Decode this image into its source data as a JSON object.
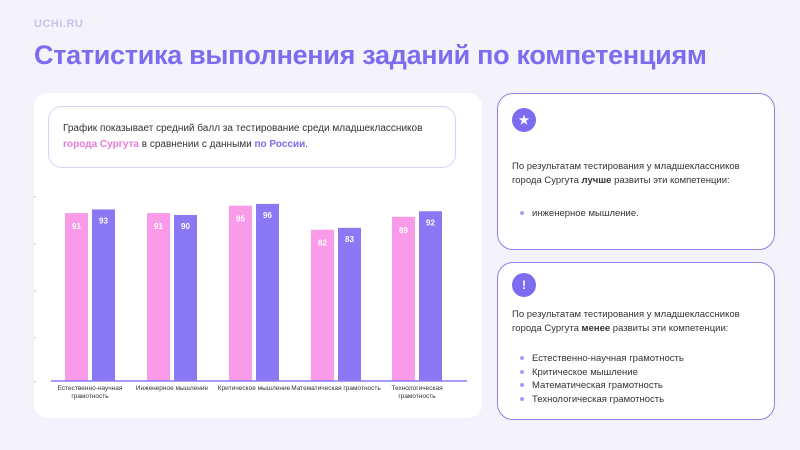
{
  "logo": "UCHi.RU",
  "title": "Статистика выполнения заданий по компетенциям",
  "description": {
    "text1": "График показывает средний балл за тестирование среди младшеклассников",
    "city": "города Сургута",
    "text2": " в сравнении с данными ",
    "country": "по России",
    "end": "."
  },
  "chart_data": {
    "type": "bar",
    "categories": [
      "Естественно-научная грамотность",
      "Инженерное мышление",
      "Критическое мышление",
      "Математическая грамотность",
      "Технологическая грамотность"
    ],
    "series": [
      {
        "values": [
          91,
          91,
          95,
          82,
          89
        ],
        "color": "#f99be8"
      },
      {
        "values": [
          93,
          90,
          96,
          83,
          92
        ],
        "color": "#8a78f5"
      }
    ],
    "ylim": [
      0,
      100
    ],
    "grid": false,
    "legend": "none"
  },
  "card_better": {
    "icon": "star-icon",
    "text": "По результатам тестирования у младшеклассников города Сургута ",
    "bold": "лучше",
    "text2": " развиты эти компетенции:",
    "items": [
      "инженерное мышление."
    ]
  },
  "card_worse": {
    "icon": "exclamation-icon",
    "text": "По результатам тестирования у младшеклассников города Сургута ",
    "bold": "менее",
    "text2": " развиты эти компетенции:",
    "items": [
      "Естественно-научная грамотность",
      "Критическое мышление",
      "Математическая грамотность",
      "Технологическая грамотность"
    ]
  }
}
